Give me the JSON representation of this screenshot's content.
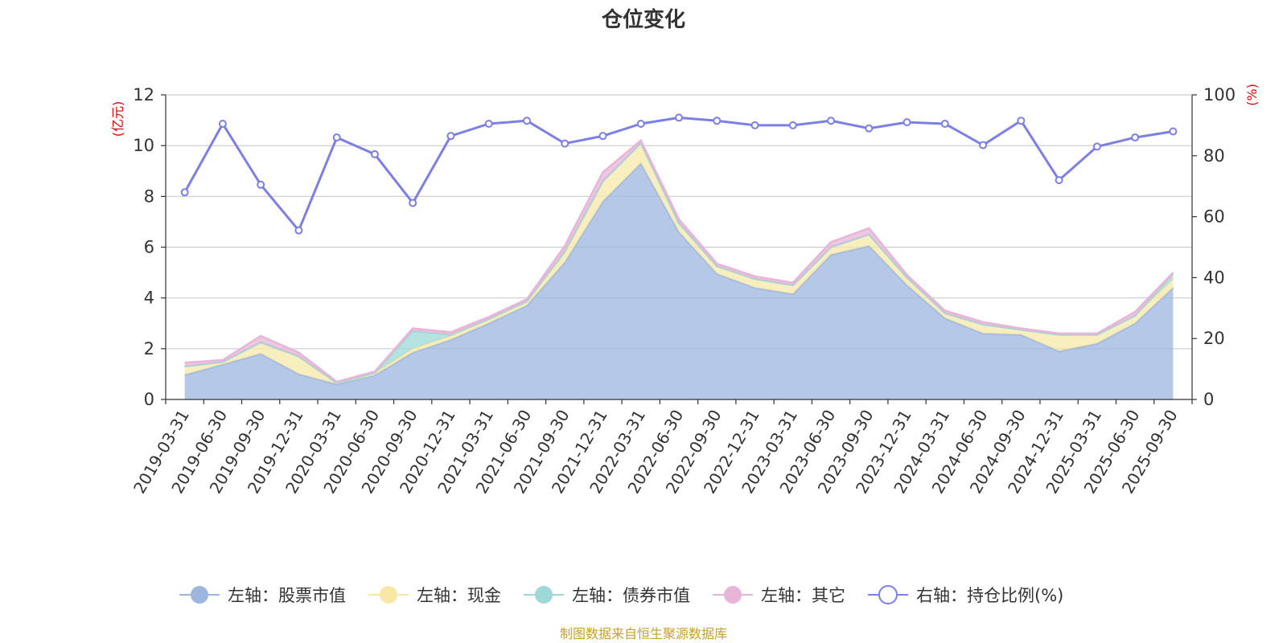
{
  "chart_data": {
    "type": "area",
    "title": "仓位变化",
    "left_axis_unit": "(亿元)",
    "right_axis_unit": "(%)",
    "left_ylim": [
      0,
      12
    ],
    "left_yticks": [
      0,
      2,
      4,
      6,
      8,
      10,
      12
    ],
    "right_ylim": [
      0,
      100
    ],
    "right_yticks": [
      0,
      20,
      40,
      60,
      80,
      100
    ],
    "grid": true,
    "legend_position": "bottom",
    "categories": [
      "2019-03-31",
      "2019-06-30",
      "2019-09-30",
      "2019-12-31",
      "2020-03-31",
      "2020-06-30",
      "2020-09-30",
      "2020-12-31",
      "2021-03-31",
      "2021-06-30",
      "2021-09-30",
      "2021-12-31",
      "2022-03-31",
      "2022-06-30",
      "2022-09-30",
      "2022-12-31",
      "2023-03-31",
      "2023-06-30",
      "2023-09-30",
      "2023-12-31",
      "2024-03-31",
      "2024-06-30",
      "2024-09-30",
      "2024-12-31",
      "2025-03-31",
      "2025-06-30",
      "2025-09-30"
    ],
    "stacked_series": [
      {
        "name": "左轴：股票市值",
        "color": "#9db6e0",
        "values": [
          0.97,
          1.38,
          1.8,
          1.0,
          0.6,
          0.95,
          1.85,
          2.35,
          3.0,
          3.7,
          5.4,
          7.8,
          9.3,
          6.6,
          4.95,
          4.4,
          4.15,
          5.7,
          6.05,
          4.5,
          3.2,
          2.6,
          2.55,
          1.9,
          2.2,
          3.0,
          4.4
        ]
      },
      {
        "name": "左轴：现金",
        "color": "#f7e8a8",
        "values": [
          0.33,
          0.1,
          0.45,
          0.7,
          0.05,
          0.1,
          0.15,
          0.15,
          0.15,
          0.15,
          0.35,
          0.8,
          0.8,
          0.35,
          0.3,
          0.35,
          0.35,
          0.3,
          0.45,
          0.3,
          0.2,
          0.35,
          0.2,
          0.65,
          0.35,
          0.3,
          0.35
        ]
      },
      {
        "name": "左轴：债券市值",
        "color": "#9fd8d8",
        "values": [
          0.0,
          0.0,
          0.0,
          0.0,
          0.0,
          0.0,
          0.7,
          0.05,
          0.02,
          0.02,
          0.1,
          0.0,
          0.0,
          0.0,
          0.0,
          0.0,
          0.0,
          0.0,
          0.0,
          0.0,
          0.0,
          0.0,
          0.0,
          0.0,
          0.0,
          0.0,
          0.2
        ]
      },
      {
        "name": "左轴：其它",
        "color": "#e8b4d8",
        "values": [
          0.15,
          0.07,
          0.25,
          0.15,
          0.05,
          0.05,
          0.1,
          0.1,
          0.08,
          0.08,
          0.2,
          0.35,
          0.1,
          0.15,
          0.1,
          0.1,
          0.1,
          0.2,
          0.25,
          0.1,
          0.1,
          0.1,
          0.05,
          0.05,
          0.05,
          0.15,
          0.05
        ]
      }
    ],
    "line_series": {
      "name": "右轴：持仓比例(%)",
      "color": "#7b7fe6",
      "values": [
        68,
        90.5,
        70.5,
        55.5,
        86,
        80.5,
        64.5,
        86.5,
        90.5,
        91.5,
        84,
        86.5,
        90.5,
        92.5,
        91.5,
        90,
        90,
        91.5,
        89,
        91,
        90.5,
        83.5,
        91.5,
        72,
        83,
        86,
        88
      ]
    }
  },
  "source_note": "制图数据来自恒生聚源数据库"
}
